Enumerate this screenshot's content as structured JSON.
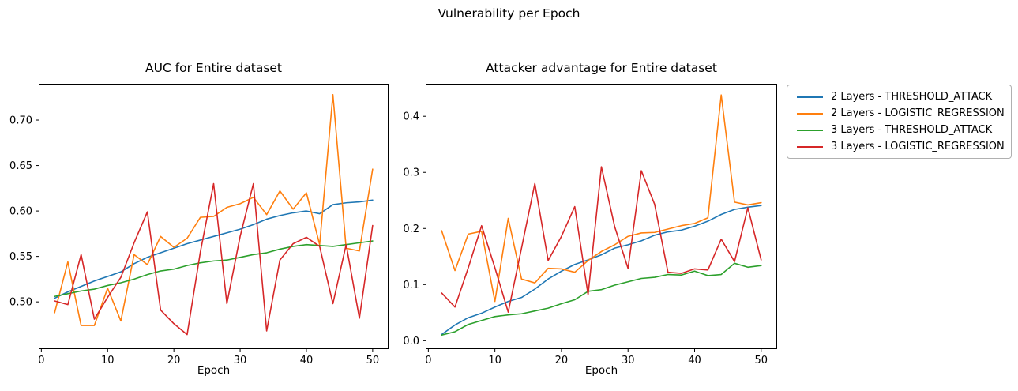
{
  "figure_title": "Vulnerability per Epoch",
  "legend": {
    "position": "outside-right"
  },
  "chart_data": [
    {
      "type": "line",
      "title": "AUC for Entire dataset",
      "xlabel": "Epoch",
      "ylabel": "",
      "grid": false,
      "xlim": [
        -0.4,
        52.4
      ],
      "ylim": [
        0.448,
        0.74
      ],
      "xticks": [
        0,
        10,
        20,
        30,
        40,
        50
      ],
      "xtick_labels": [
        "0",
        "10",
        "20",
        "30",
        "40",
        "50"
      ],
      "yticks": [
        0.5,
        0.55,
        0.6,
        0.65,
        0.7
      ],
      "ytick_labels": [
        "0.50",
        "0.55",
        "0.60",
        "0.65",
        "0.70"
      ],
      "x": [
        2,
        4,
        6,
        8,
        10,
        12,
        14,
        16,
        18,
        20,
        22,
        24,
        26,
        28,
        30,
        32,
        34,
        36,
        38,
        40,
        42,
        44,
        46,
        48,
        50
      ],
      "series": [
        {
          "name": "2 Layers - THRESHOLD_ATTACK",
          "color": "#1f77b4",
          "values": [
            0.504,
            0.511,
            0.517,
            0.523,
            0.528,
            0.533,
            0.542,
            0.549,
            0.554,
            0.559,
            0.564,
            0.568,
            0.572,
            0.576,
            0.58,
            0.585,
            0.591,
            0.595,
            0.598,
            0.6,
            0.597,
            0.607,
            0.609,
            0.61,
            0.612
          ]
        },
        {
          "name": "2 Layers - LOGISTIC_REGRESSION",
          "color": "#ff7f0e",
          "values": [
            0.488,
            0.544,
            0.474,
            0.474,
            0.515,
            0.479,
            0.552,
            0.541,
            0.572,
            0.56,
            0.57,
            0.593,
            0.594,
            0.604,
            0.608,
            0.615,
            0.596,
            0.622,
            0.602,
            0.62,
            0.563,
            0.728,
            0.559,
            0.556,
            0.646
          ]
        },
        {
          "name": "3 Layers - THRESHOLD_ATTACK",
          "color": "#2ca02c",
          "values": [
            0.506,
            0.509,
            0.512,
            0.514,
            0.518,
            0.521,
            0.525,
            0.53,
            0.534,
            0.536,
            0.54,
            0.543,
            0.545,
            0.546,
            0.549,
            0.552,
            0.554,
            0.558,
            0.561,
            0.563,
            0.562,
            0.561,
            0.563,
            0.565,
            0.567
          ]
        },
        {
          "name": "3 Layers - LOGISTIC_REGRESSION",
          "color": "#d62728",
          "values": [
            0.501,
            0.497,
            0.552,
            0.481,
            0.505,
            0.527,
            0.565,
            0.599,
            0.491,
            0.476,
            0.464,
            0.555,
            0.63,
            0.498,
            0.572,
            0.63,
            0.468,
            0.546,
            0.564,
            0.571,
            0.561,
            0.498,
            0.563,
            0.482,
            0.584
          ]
        }
      ]
    },
    {
      "type": "line",
      "title": "Attacker advantage for Entire dataset",
      "xlabel": "Epoch",
      "ylabel": "",
      "grid": false,
      "xlim": [
        -0.4,
        52.4
      ],
      "ylim": [
        -0.015,
        0.458
      ],
      "xticks": [
        0,
        10,
        20,
        30,
        40,
        50
      ],
      "xtick_labels": [
        "0",
        "10",
        "20",
        "30",
        "40",
        "50"
      ],
      "yticks": [
        0.0,
        0.1,
        0.2,
        0.3,
        0.4
      ],
      "ytick_labels": [
        "0.0",
        "0.1",
        "0.2",
        "0.3",
        "0.4"
      ],
      "x": [
        2,
        4,
        6,
        8,
        10,
        12,
        14,
        16,
        18,
        20,
        22,
        24,
        26,
        28,
        30,
        32,
        34,
        36,
        38,
        40,
        42,
        44,
        46,
        48,
        50
      ],
      "series": [
        {
          "name": "2 Layers - THRESHOLD_ATTACK",
          "color": "#1f77b4",
          "values": [
            0.011,
            0.028,
            0.041,
            0.049,
            0.06,
            0.07,
            0.077,
            0.092,
            0.11,
            0.124,
            0.136,
            0.144,
            0.153,
            0.165,
            0.171,
            0.178,
            0.188,
            0.194,
            0.197,
            0.204,
            0.213,
            0.225,
            0.234,
            0.238,
            0.241
          ]
        },
        {
          "name": "2 Layers - LOGISTIC_REGRESSION",
          "color": "#ff7f0e",
          "values": [
            0.196,
            0.125,
            0.19,
            0.195,
            0.07,
            0.218,
            0.11,
            0.103,
            0.129,
            0.128,
            0.122,
            0.143,
            0.159,
            0.171,
            0.186,
            0.192,
            0.193,
            0.199,
            0.205,
            0.209,
            0.219,
            0.438,
            0.247,
            0.242,
            0.246
          ]
        },
        {
          "name": "3 Layers - THRESHOLD_ATTACK",
          "color": "#2ca02c",
          "values": [
            0.01,
            0.016,
            0.029,
            0.036,
            0.043,
            0.046,
            0.048,
            0.053,
            0.058,
            0.066,
            0.073,
            0.088,
            0.091,
            0.099,
            0.105,
            0.111,
            0.113,
            0.118,
            0.117,
            0.124,
            0.116,
            0.118,
            0.138,
            0.131,
            0.134
          ]
        },
        {
          "name": "3 Layers - LOGISTIC_REGRESSION",
          "color": "#d62728",
          "values": [
            0.085,
            0.06,
            0.13,
            0.205,
            0.13,
            0.051,
            0.165,
            0.28,
            0.143,
            0.186,
            0.239,
            0.082,
            0.31,
            0.203,
            0.129,
            0.303,
            0.243,
            0.122,
            0.12,
            0.128,
            0.126,
            0.181,
            0.141,
            0.237,
            0.144
          ]
        }
      ]
    }
  ]
}
